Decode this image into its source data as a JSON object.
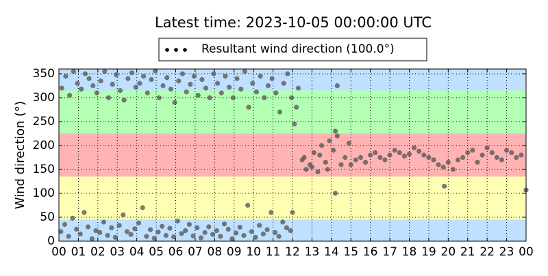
{
  "chart_data": {
    "type": "scatter",
    "title": "Latest time: 2023-10-05 00:00:00 UTC",
    "ylabel": "Wind direction (°)",
    "xlim": [
      0,
      24
    ],
    "ylim": [
      0,
      360
    ],
    "xticks": [
      {
        "value": 0,
        "label": "00"
      },
      {
        "value": 1,
        "label": "01"
      },
      {
        "value": 2,
        "label": "02"
      },
      {
        "value": 3,
        "label": "03"
      },
      {
        "value": 4,
        "label": "04"
      },
      {
        "value": 5,
        "label": "05"
      },
      {
        "value": 6,
        "label": "06"
      },
      {
        "value": 7,
        "label": "07"
      },
      {
        "value": 8,
        "label": "08"
      },
      {
        "value": 9,
        "label": "09"
      },
      {
        "value": 10,
        "label": "10"
      },
      {
        "value": 11,
        "label": "11"
      },
      {
        "value": 12,
        "label": "12"
      },
      {
        "value": 13,
        "label": "13"
      },
      {
        "value": 14,
        "label": "14"
      },
      {
        "value": 15,
        "label": "15"
      },
      {
        "value": 16,
        "label": "16"
      },
      {
        "value": 17,
        "label": "17"
      },
      {
        "value": 18,
        "label": "18"
      },
      {
        "value": 19,
        "label": "19"
      },
      {
        "value": 20,
        "label": "20"
      },
      {
        "value": 21,
        "label": "21"
      },
      {
        "value": 22,
        "label": "22"
      },
      {
        "value": 23,
        "label": "23"
      },
      {
        "value": 24,
        "label": "00"
      }
    ],
    "yticks": [
      0,
      50,
      100,
      150,
      200,
      250,
      300,
      350
    ],
    "grid": true,
    "bands": [
      {
        "from": 0,
        "to": 45,
        "color": "#bfe0ff"
      },
      {
        "from": 45,
        "to": 135,
        "color": "#ffffb3"
      },
      {
        "from": 135,
        "to": 225,
        "color": "#ffb3b3"
      },
      {
        "from": 225,
        "to": 315,
        "color": "#b3ffb3"
      },
      {
        "from": 315,
        "to": 360,
        "color": "#bfe0ff"
      }
    ],
    "x": [
      0.1,
      0.3,
      0.5,
      0.7,
      0.9,
      1.1,
      1.3,
      1.5,
      1.7,
      1.9,
      2.1,
      2.3,
      2.5,
      2.7,
      2.9,
      3.1,
      3.3,
      3.5,
      3.7,
      3.9,
      4.1,
      4.3,
      4.5,
      4.7,
      4.9,
      5.1,
      5.3,
      5.5,
      5.7,
      5.9,
      6.1,
      6.3,
      6.5,
      6.7,
      6.9,
      7.1,
      7.3,
      7.5,
      7.7,
      7.9,
      8.1,
      8.3,
      8.5,
      8.7,
      8.9,
      9.1,
      9.3,
      9.5,
      9.7,
      9.9,
      10.1,
      10.3,
      10.5,
      10.7,
      10.9,
      11.1,
      11.3,
      11.5,
      11.7,
      11.9,
      0.15,
      0.35,
      0.55,
      0.75,
      0.95,
      1.15,
      1.35,
      1.55,
      1.75,
      1.95,
      2.15,
      2.35,
      2.55,
      2.75,
      2.95,
      3.15,
      3.35,
      3.55,
      3.75,
      3.95,
      4.15,
      4.35,
      4.55,
      4.75,
      4.95,
      5.15,
      5.35,
      5.55,
      5.75,
      5.95,
      6.15,
      6.35,
      6.55,
      6.75,
      6.95,
      7.15,
      7.35,
      7.55,
      7.75,
      7.95,
      8.15,
      8.35,
      8.55,
      8.75,
      8.95,
      9.15,
      9.35,
      9.55,
      9.75,
      9.95,
      10.15,
      10.35,
      10.55,
      10.75,
      10.95,
      11.15,
      11.35,
      11.55,
      11.75,
      11.95,
      12.0,
      12.1,
      12.2,
      12.3,
      12.5,
      12.7,
      12.9,
      13.1,
      13.3,
      13.5,
      13.7,
      13.9,
      14.1,
      14.3,
      14.5,
      14.7,
      14.9,
      12.6,
      13.0,
      13.4,
      13.8,
      14.2,
      14.2,
      14.3,
      15.0,
      15.25,
      15.5,
      15.75,
      16.0,
      16.25,
      16.5,
      16.75,
      17.0,
      17.25,
      17.5,
      17.75,
      18.0,
      18.25,
      18.5,
      18.75,
      19.0,
      19.25,
      19.5,
      19.75,
      20.0,
      20.25,
      20.5,
      20.75,
      21.0,
      21.25,
      21.5,
      21.75,
      22.0,
      22.25,
      22.5,
      22.75,
      23.0,
      23.25,
      23.5,
      23.75,
      19.8,
      24.0
    ],
    "series": [
      {
        "name": "Resultant wind direction (100.0°)",
        "color": "#5a5a5a",
        "values": [
          20,
          35,
          10,
          48,
          25,
          15,
          60,
          30,
          5,
          22,
          18,
          40,
          12,
          28,
          8,
          33,
          55,
          20,
          14,
          26,
          38,
          70,
          10,
          24,
          6,
          19,
          31,
          12,
          27,
          9,
          42,
          16,
          22,
          35,
          11,
          28,
          7,
          18,
          30,
          14,
          22,
          10,
          36,
          25,
          5,
          17,
          29,
          12,
          75,
          20,
          8,
          33,
          15,
          24,
          60,
          18,
          10,
          40,
          28,
          22,
          320,
          345,
          305,
          355,
          330,
          318,
          350,
          340,
          325,
          310,
          335,
          355,
          300,
          328,
          348,
          315,
          295,
          340,
          352,
          322,
          330,
          345,
          310,
          338,
          356,
          300,
          325,
          342,
          318,
          290,
          335,
          350,
          312,
          328,
          345,
          305,
          338,
          320,
          300,
          350,
          330,
          310,
          345,
          322,
          300,
          340,
          318,
          355,
          280,
          330,
          312,
          345,
          300,
          325,
          340,
          310,
          270,
          330,
          350,
          300,
          60,
          245,
          280,
          320,
          170,
          150,
          160,
          185,
          145,
          200,
          165,
          210,
          190,
          220,
          160,
          175,
          205,
          175,
          155,
          180,
          150,
          230,
          100,
          325,
          160,
          170,
          175,
          165,
          180,
          185,
          175,
          170,
          180,
          190,
          185,
          178,
          182,
          195,
          188,
          180,
          175,
          170,
          160,
          155,
          165,
          150,
          170,
          175,
          185,
          190,
          165,
          180,
          195,
          185,
          175,
          170,
          190,
          185,
          175,
          180,
          115,
          107
        ]
      }
    ]
  }
}
